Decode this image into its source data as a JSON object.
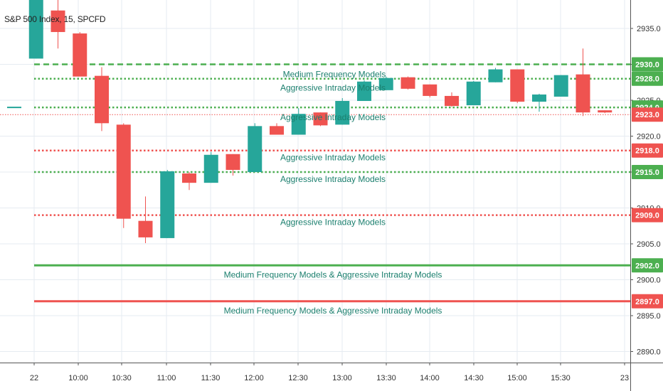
{
  "chart_title": "S&P 500 Index, 15, SPCFD",
  "colors": {
    "up": "#26a69a",
    "down": "#ef5350",
    "green_line": "#4caf50",
    "red_line": "#ef5350",
    "grid": "#e6ebf1",
    "axis": "#555555",
    "label_text": "#1b7f6e"
  },
  "chart_data": {
    "type": "candlestick",
    "title": "S&P 500 Index, 15, SPCFD",
    "ylim": [
      2887,
      2939
    ],
    "y_ticks": [
      2935.0,
      2930.0,
      2925.0,
      2920.0,
      2915.0,
      2910.0,
      2905.0,
      2900.0,
      2895.0,
      2890.0
    ],
    "x_ticks": [
      "22",
      "10:00",
      "10:30",
      "11:00",
      "11:30",
      "12:00",
      "12:30",
      "13:00",
      "13:30",
      "14:00",
      "14:30",
      "15:00",
      "15:30",
      "23"
    ],
    "candles": [
      {
        "o": 2923.9,
        "h": 2923.9,
        "l": 2923.9,
        "c": 2924.1
      },
      {
        "o": 2930.8,
        "h": 2939.0,
        "l": 2930.8,
        "c": 2939.0
      },
      {
        "o": 2937.5,
        "h": 2939.0,
        "l": 2932.2,
        "c": 2934.5
      },
      {
        "o": 2934.3,
        "h": 2934.5,
        "l": 2928.5,
        "c": 2928.3
      },
      {
        "o": 2928.4,
        "h": 2929.6,
        "l": 2920.7,
        "c": 2921.8
      },
      {
        "o": 2921.6,
        "h": 2921.8,
        "l": 2907.2,
        "c": 2908.5
      },
      {
        "o": 2908.2,
        "h": 2911.6,
        "l": 2905.1,
        "c": 2905.9
      },
      {
        "o": 2905.8,
        "h": 2915.3,
        "l": 2905.8,
        "c": 2915.1
      },
      {
        "o": 2914.8,
        "h": 2915.0,
        "l": 2912.5,
        "c": 2913.5
      },
      {
        "o": 2913.5,
        "h": 2917.8,
        "l": 2913.5,
        "c": 2917.4
      },
      {
        "o": 2917.5,
        "h": 2917.5,
        "l": 2914.5,
        "c": 2915.3
      },
      {
        "o": 2915.0,
        "h": 2921.8,
        "l": 2915.0,
        "c": 2921.4
      },
      {
        "o": 2921.4,
        "h": 2921.8,
        "l": 2920.2,
        "c": 2920.2
      },
      {
        "o": 2920.2,
        "h": 2923.9,
        "l": 2920.2,
        "c": 2923.1
      },
      {
        "o": 2923.3,
        "h": 2923.3,
        "l": 2921.4,
        "c": 2921.5
      },
      {
        "o": 2921.6,
        "h": 2925.3,
        "l": 2921.6,
        "c": 2924.9
      },
      {
        "o": 2924.9,
        "h": 2927.8,
        "l": 2924.9,
        "c": 2927.6
      },
      {
        "o": 2926.4,
        "h": 2928.3,
        "l": 2926.4,
        "c": 2928.1
      },
      {
        "o": 2928.2,
        "h": 2928.3,
        "l": 2926.5,
        "c": 2926.6
      },
      {
        "o": 2927.2,
        "h": 2927.2,
        "l": 2925.4,
        "c": 2925.6
      },
      {
        "o": 2925.6,
        "h": 2926.1,
        "l": 2924.1,
        "c": 2924.2
      },
      {
        "o": 2924.3,
        "h": 2927.7,
        "l": 2924.3,
        "c": 2927.6
      },
      {
        "o": 2927.5,
        "h": 2929.5,
        "l": 2927.5,
        "c": 2929.3
      },
      {
        "o": 2929.3,
        "h": 2929.3,
        "l": 2924.6,
        "c": 2924.8
      },
      {
        "o": 2924.8,
        "h": 2925.9,
        "l": 2923.4,
        "c": 2925.8
      },
      {
        "o": 2925.5,
        "h": 2928.5,
        "l": 2925.5,
        "c": 2928.5
      },
      {
        "o": 2928.6,
        "h": 2932.2,
        "l": 2922.8,
        "c": 2923.3
      },
      {
        "o": 2923.6,
        "h": 2923.6,
        "l": 2923.2,
        "c": 2923.3
      }
    ],
    "levels": [
      {
        "price": 2930.0,
        "label": "2930.0",
        "color": "green",
        "style": "dashed",
        "text": "Medium Frequency Models"
      },
      {
        "price": 2928.0,
        "label": "2928.0",
        "color": "green",
        "style": "dotted",
        "text": "Aggressive Intraday Models"
      },
      {
        "price": 2924.0,
        "label": "2924.0",
        "color": "green",
        "style": "dotted",
        "text": "Aggressive Intraday Models"
      },
      {
        "price": 2923.0,
        "label": "2923.0",
        "color": "red",
        "style": "thin-dotted",
        "text": ""
      },
      {
        "price": 2918.0,
        "label": "2918.0",
        "color": "red",
        "style": "dotted",
        "text": "Aggressive Intraday Models"
      },
      {
        "price": 2915.0,
        "label": "2915.0",
        "color": "green",
        "style": "dotted",
        "text": "Aggressive Intraday Models"
      },
      {
        "price": 2909.0,
        "label": "2909.0",
        "color": "red",
        "style": "dotted",
        "text": "Aggressive Intraday Models"
      },
      {
        "price": 2902.0,
        "label": "2902.0",
        "color": "green",
        "style": "solid",
        "text": "Medium Frequency Models & Aggressive Intraday Models"
      },
      {
        "price": 2897.0,
        "label": "2897.0",
        "color": "red",
        "style": "solid",
        "text": "Medium Frequency Models & Aggressive Intraday Models"
      }
    ]
  }
}
